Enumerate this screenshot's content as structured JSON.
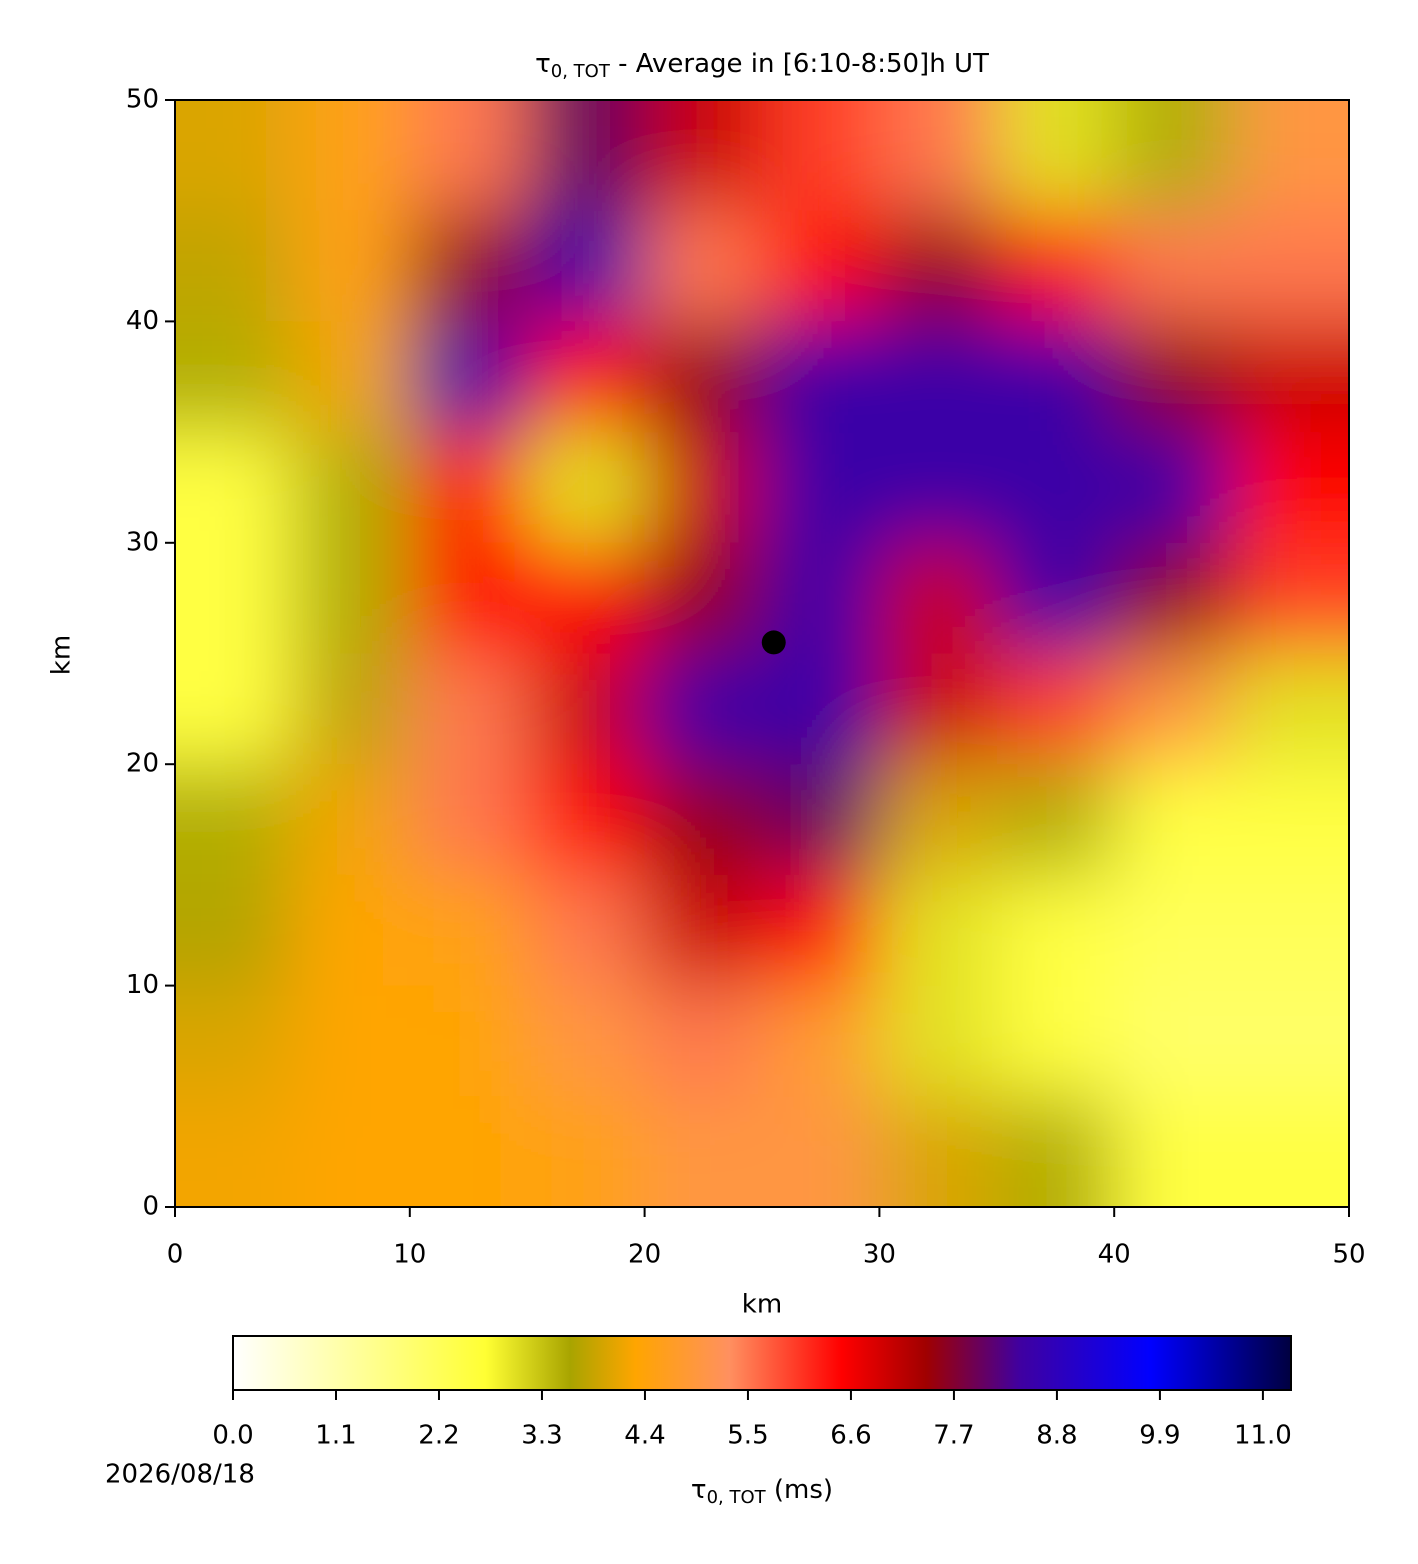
{
  "chart_data": {
    "type": "heatmap",
    "title": {
      "symbol": "τ",
      "subscript": "0, TOT",
      "rest": " - Average in [6:10-8:50]h UT"
    },
    "x_label": "km",
    "y_label": "km",
    "xlim": [
      0,
      50
    ],
    "ylim": [
      0,
      50
    ],
    "xticks": [
      0,
      10,
      20,
      30,
      40,
      50
    ],
    "yticks": [
      0,
      10,
      20,
      30,
      40,
      50
    ],
    "x": [
      2.5,
      7.5,
      12.5,
      17.5,
      22.5,
      27.5,
      32.5,
      37.5,
      42.5,
      47.5
    ],
    "y": [
      47.5,
      42.5,
      37.5,
      32.5,
      27.5,
      22.5,
      17.5,
      12.5,
      7.5,
      2.5
    ],
    "z": [
      [
        4,
        4.5,
        5.5,
        8,
        7,
        6,
        5.5,
        3,
        3.5,
        5
      ],
      [
        3.8,
        4.5,
        7.5,
        8.5,
        5.5,
        6.5,
        7.5,
        6.5,
        5.5,
        5.5
      ],
      [
        3.5,
        4.2,
        8.5,
        6.5,
        7.5,
        8.5,
        8.5,
        8.5,
        7.5,
        7
      ],
      [
        2.5,
        3.5,
        6.5,
        3,
        7,
        8.5,
        8.5,
        8.5,
        8.5,
        6.5
      ],
      [
        2.5,
        3.5,
        6.5,
        6.5,
        7.5,
        8.5,
        7,
        8.5,
        7.5,
        6
      ],
      [
        2.5,
        3.8,
        5.5,
        7,
        8.5,
        8.5,
        7,
        6,
        5,
        3
      ],
      [
        3.5,
        4.2,
        5.5,
        6.5,
        7.5,
        8,
        4,
        3.5,
        2.5,
        2.5
      ],
      [
        3.7,
        4.3,
        4.5,
        5.5,
        7,
        6.5,
        3,
        2.5,
        2.2,
        2.2
      ],
      [
        4,
        4.3,
        4.3,
        5,
        5.5,
        4.8,
        3,
        2.5,
        2,
        2
      ],
      [
        4.2,
        4.3,
        4.3,
        4.5,
        5,
        5,
        4,
        3.5,
        2.5,
        2.5
      ]
    ],
    "marker": {
      "x": 25.5,
      "y": 25.5,
      "color": "#000000"
    },
    "colorbar": {
      "label": {
        "symbol": "τ",
        "subscript": "0, TOT",
        "rest": " (ms)"
      },
      "zlim": [
        0,
        11.3
      ],
      "ticks": [
        {
          "value": 0,
          "label": "0.0"
        },
        1.1,
        2.2,
        3.3,
        4.4,
        5.5,
        6.6,
        7.7,
        8.8,
        9.9,
        {
          "value": 11,
          "label": "11.0"
        }
      ]
    },
    "colormap": [
      {
        "value": 0,
        "color": "#ffffff"
      },
      {
        "value": 2.7,
        "color": "#ffff33"
      },
      {
        "value": 3.6,
        "color": "#a8a400"
      },
      {
        "value": 4.3,
        "color": "#ffa500"
      },
      {
        "value": 5.3,
        "color": "#ff9060"
      },
      {
        "value": 6.5,
        "color": "#ff0000"
      },
      {
        "value": 7.4,
        "color": "#a00000"
      },
      {
        "value": 8.4,
        "color": "#4000a0"
      },
      {
        "value": 9.8,
        "color": "#0000ff"
      },
      {
        "value": 11.3,
        "color": "#000040"
      }
    ],
    "date": "2026/08/18"
  }
}
